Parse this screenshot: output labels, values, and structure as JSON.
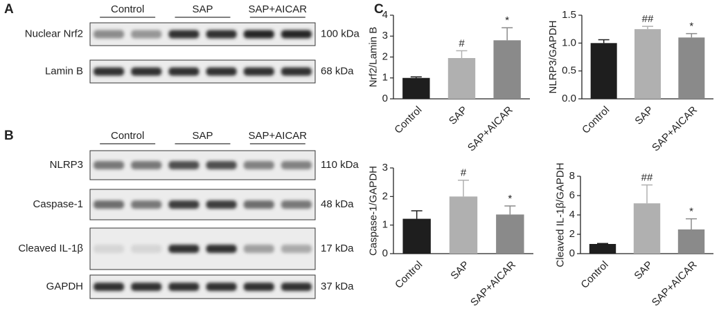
{
  "panel_a": {
    "letter": "A",
    "groups": [
      "Control",
      "SAP",
      "SAP+AICAR"
    ],
    "rows": [
      {
        "label": "Nuclear Nrf2",
        "size": "100 kDa"
      },
      {
        "label": "Lamin B",
        "size": "68 kDa"
      }
    ]
  },
  "panel_b": {
    "letter": "B",
    "groups": [
      "Control",
      "SAP",
      "SAP+AICAR"
    ],
    "rows": [
      {
        "label": "NLRP3",
        "size": "110 kDa"
      },
      {
        "label": "Caspase-1",
        "size": "48 kDa"
      },
      {
        "label": "Cleaved IL-1β",
        "size": "17 kDa"
      },
      {
        "label": "GAPDH",
        "size": "37 kDa"
      }
    ]
  },
  "panel_c": {
    "letter": "C"
  },
  "chart_data": [
    {
      "type": "bar",
      "y_label": "Nrf2/Lamin B",
      "categories": [
        "Control",
        "SAP",
        "SAP+AICAR"
      ],
      "values": [
        1.0,
        1.95,
        2.8
      ],
      "errors": [
        0.05,
        0.35,
        0.6
      ],
      "markers": [
        null,
        "#",
        "*"
      ],
      "colors": [
        "#1e1e1e",
        "#b0b0b0",
        "#8a8a8a"
      ],
      "ylim": [
        0,
        4
      ],
      "yticks": [
        0,
        1,
        2,
        3,
        4
      ]
    },
    {
      "type": "bar",
      "y_label": "NLRP3/GAPDH",
      "categories": [
        "Control",
        "SAP",
        "SAP+AICAR"
      ],
      "values": [
        1.0,
        1.25,
        1.1
      ],
      "errors": [
        0.06,
        0.05,
        0.07
      ],
      "markers": [
        null,
        "##",
        "*"
      ],
      "colors": [
        "#1e1e1e",
        "#b0b0b0",
        "#8a8a8a"
      ],
      "ylim": [
        0,
        1.5
      ],
      "yticks": [
        {
          "value": 0,
          "label": "0.0"
        },
        0.5,
        {
          "value": 1,
          "label": "1.0"
        },
        1.5
      ]
    },
    {
      "type": "bar",
      "y_label": "Caspase-1/GAPDH",
      "categories": [
        "Control",
        "SAP",
        "SAP+AICAR"
      ],
      "values": [
        1.22,
        2.0,
        1.37
      ],
      "errors": [
        0.28,
        0.57,
        0.3
      ],
      "markers": [
        null,
        "#",
        "*"
      ],
      "colors": [
        "#1e1e1e",
        "#b0b0b0",
        "#8a8a8a"
      ],
      "ylim": [
        0,
        3
      ],
      "yticks": [
        0,
        1,
        2,
        3
      ]
    },
    {
      "type": "bar",
      "y_label": "Cleaved IL-1β/GAPDH",
      "categories": [
        "Control",
        "SAP",
        "SAP+AICAR"
      ],
      "values": [
        1.0,
        5.2,
        2.5
      ],
      "errors": [
        0.05,
        1.9,
        1.1
      ],
      "markers": [
        null,
        "##",
        "*"
      ],
      "colors": [
        "#1e1e1e",
        "#b0b0b0",
        "#8a8a8a"
      ],
      "ylim": [
        0,
        8
      ],
      "yticks": [
        0,
        2,
        4,
        6,
        8
      ]
    }
  ]
}
